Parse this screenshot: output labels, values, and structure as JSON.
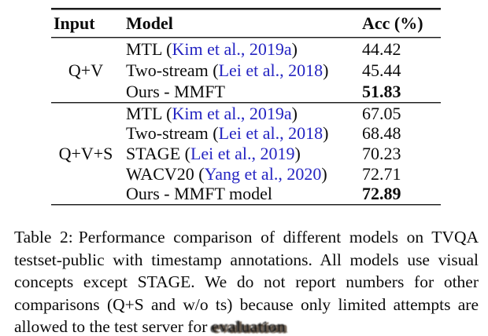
{
  "table": {
    "headers": [
      "Input",
      "Model",
      "Acc (%)"
    ],
    "citation_color": "#2424c2",
    "sections": [
      {
        "input": "Q+V",
        "rows": [
          {
            "name": "MTL (",
            "cite": "Kim et al., 2019a",
            "close": ")",
            "acc": "44.42"
          },
          {
            "name": "Two-stream (",
            "cite": "Lei et al., 2018",
            "close": ")",
            "acc": "45.44"
          },
          {
            "name": "Ours - MMFT",
            "cite": "",
            "close": "",
            "acc": "51.83"
          }
        ]
      },
      {
        "input": "Q+V+S",
        "rows": [
          {
            "name": "MTL (",
            "cite": "Kim et al., 2019a",
            "close": ")",
            "acc": "67.05"
          },
          {
            "name": "Two-stream (",
            "cite": "Lei et al., 2018",
            "close": ")",
            "acc": "68.48"
          },
          {
            "name": "STAGE (",
            "cite": "Lei et al., 2019",
            "close": ")",
            "acc": "70.23"
          },
          {
            "name": "WACV20 (",
            "cite": "Yang et al., 2020",
            "close": ")",
            "acc": "72.71"
          },
          {
            "name": "Ours - MMFT model",
            "cite": "",
            "close": "",
            "acc": "72.89"
          }
        ]
      }
    ]
  },
  "caption": {
    "label": "Table 2:",
    "text": "Performance comparison of different models on TVQA testset-public with timestamp annotations. All models use visual concepts except STAGE. We do not report numbers for other comparisons (Q+S and w/o ts) because only limited attempts are allowed to the test server for",
    "garbled_word": "evaluation"
  }
}
